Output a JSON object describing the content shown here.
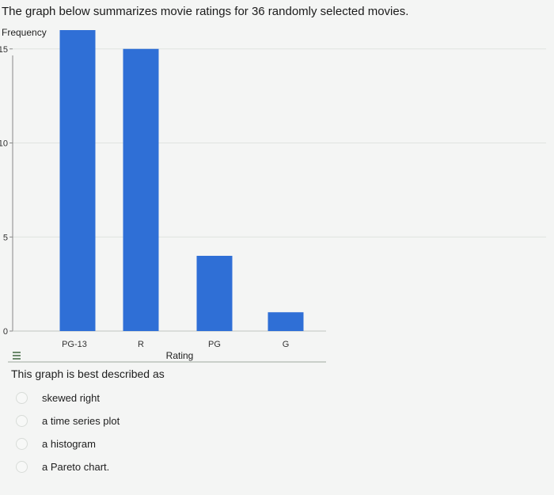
{
  "prompt": "The graph below summarizes movie ratings for 36 randomly selected movies.",
  "question": "This graph is best described as",
  "options": [
    {
      "label": "skewed right"
    },
    {
      "label": "a time series plot"
    },
    {
      "label": "a histogram"
    },
    {
      "label": "a Pareto chart."
    }
  ],
  "colors": {
    "bar": "#2f6fd6",
    "grid": "#dfe3df",
    "axis": "#888888"
  },
  "chart_data": {
    "type": "bar",
    "title": "",
    "xlabel": "Rating",
    "ylabel": "Frequency",
    "categories": [
      "PG-13",
      "R",
      "PG",
      "G"
    ],
    "values": [
      16,
      15,
      4,
      1
    ],
    "ylim": [
      0,
      16
    ],
    "yticks": [
      0,
      5,
      10,
      15
    ],
    "grid": true,
    "legend": "none"
  }
}
